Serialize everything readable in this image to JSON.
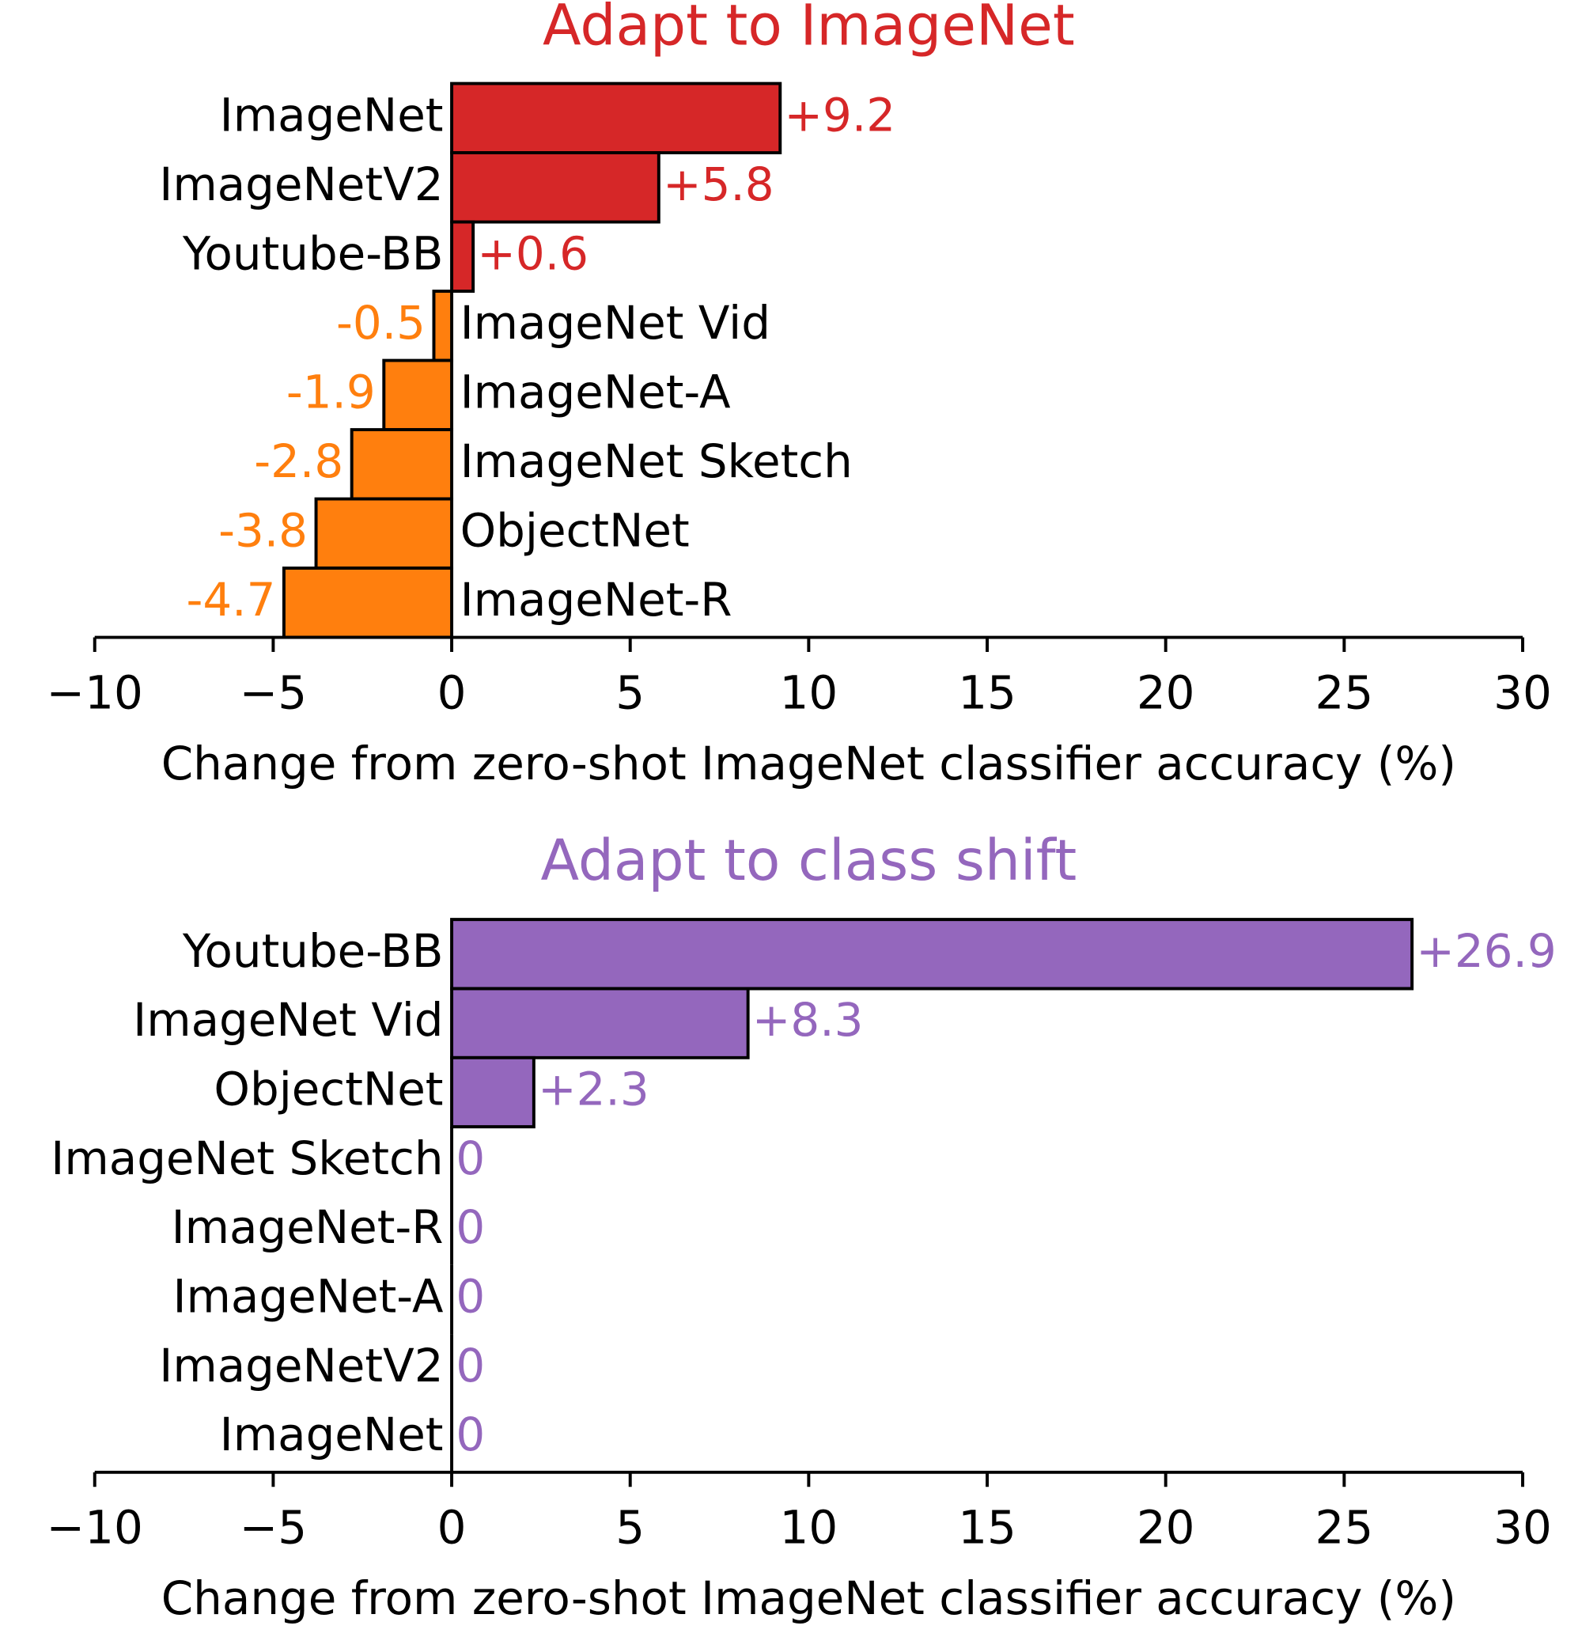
{
  "chart_data": [
    {
      "type": "bar",
      "orientation": "horizontal",
      "title": "Adapt to ImageNet",
      "title_color": "#d62728",
      "categories": [
        "ImageNet",
        "ImageNetV2",
        "Youtube-BB",
        "ImageNet Vid",
        "ImageNet-A",
        "ImageNet Sketch",
        "ObjectNet",
        "ImageNet-R"
      ],
      "values": [
        9.2,
        5.8,
        0.6,
        -0.5,
        -1.9,
        -2.8,
        -3.8,
        -4.7
      ],
      "value_labels": [
        "+9.2",
        "+5.8",
        "+0.6",
        "-0.5",
        "-1.9",
        "-2.8",
        "-3.8",
        "-4.7"
      ],
      "colors": [
        "#d62728",
        "#d62728",
        "#d62728",
        "#ff7f0e",
        "#ff7f0e",
        "#ff7f0e",
        "#ff7f0e",
        "#ff7f0e"
      ],
      "xlim": [
        -10,
        30
      ],
      "xticks": [
        {
          "value": -10,
          "label": "−10"
        },
        {
          "value": -5,
          "label": "−5"
        },
        0,
        5,
        10,
        15,
        20,
        25,
        30
      ],
      "x_label": "Change from zero-shot ImageNet classifier accuracy (%)"
    },
    {
      "type": "bar",
      "orientation": "horizontal",
      "title": "Adapt to class shift",
      "title_color": "#9467bd",
      "categories": [
        "Youtube-BB",
        "ImageNet Vid",
        "ObjectNet",
        "ImageNet Sketch",
        "ImageNet-R",
        "ImageNet-A",
        "ImageNetV2",
        "ImageNet"
      ],
      "values": [
        26.9,
        8.3,
        2.3,
        0,
        0,
        0,
        0,
        0
      ],
      "value_labels": [
        "+26.9",
        "+8.3",
        "+2.3",
        "0",
        "0",
        "0",
        "0",
        "0"
      ],
      "colors": [
        "#9467bd",
        "#9467bd",
        "#9467bd",
        "#9467bd",
        "#9467bd",
        "#9467bd",
        "#9467bd",
        "#9467bd"
      ],
      "xlim": [
        -10,
        30
      ],
      "xticks": [
        {
          "value": -10,
          "label": "−10"
        },
        {
          "value": -5,
          "label": "−5"
        },
        0,
        5,
        10,
        15,
        20,
        25,
        30
      ],
      "x_label": "Change from zero-shot ImageNet classifier accuracy (%)"
    }
  ]
}
